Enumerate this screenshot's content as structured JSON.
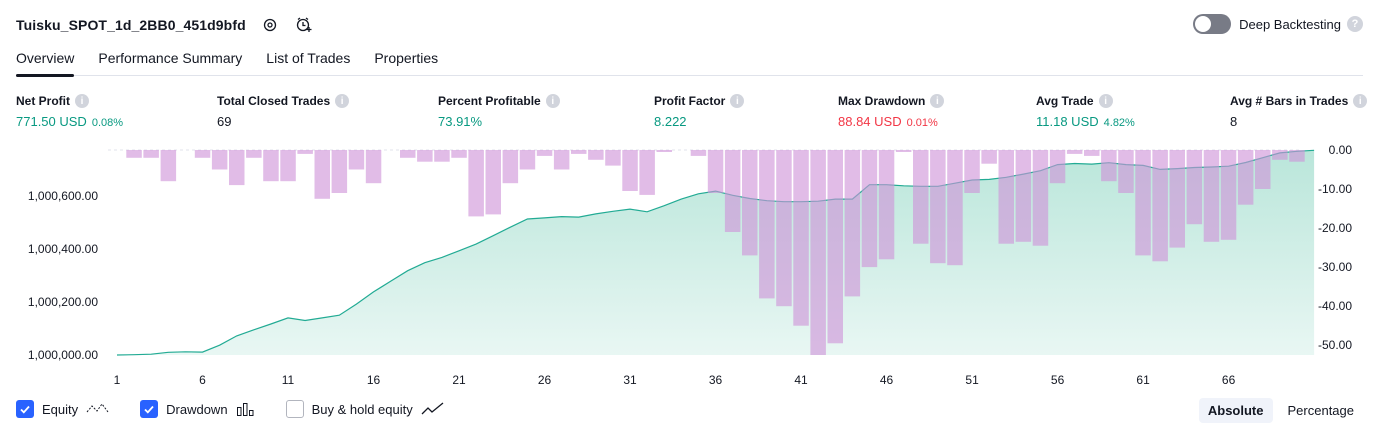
{
  "header": {
    "title": "Tuisku_SPOT_1d_2BB0_451d9bfd",
    "deep_backtesting_label": "Deep Backtesting",
    "help_glyph": "?"
  },
  "tabs": [
    {
      "label": "Overview",
      "active": true
    },
    {
      "label": "Performance Summary",
      "active": false
    },
    {
      "label": "List of Trades",
      "active": false
    },
    {
      "label": "Properties",
      "active": false
    }
  ],
  "metrics": [
    {
      "label": "Net Profit",
      "value": "771.50 USD",
      "sub": "0.08%",
      "tone": "pos"
    },
    {
      "label": "Total Closed Trades",
      "value": "69",
      "sub": "",
      "tone": "neu"
    },
    {
      "label": "Percent Profitable",
      "value": "73.91%",
      "sub": "",
      "tone": "pos"
    },
    {
      "label": "Profit Factor",
      "value": "8.222",
      "sub": "",
      "tone": "pos"
    },
    {
      "label": "Max Drawdown",
      "value": "88.84 USD",
      "sub": "0.01%",
      "tone": "neg"
    },
    {
      "label": "Avg Trade",
      "value": "11.18 USD",
      "sub": "4.82%",
      "tone": "pos"
    },
    {
      "label": "Avg # Bars in Trades",
      "value": "8",
      "sub": "",
      "tone": "neu"
    }
  ],
  "info_glyph": "i",
  "legend": {
    "equity": "Equity",
    "drawdown": "Drawdown",
    "buy_hold": "Buy & hold equity"
  },
  "mode": {
    "absolute": "Absolute",
    "percentage": "Percentage"
  },
  "colors": {
    "equity_line": "#22ab94",
    "equity_fill": "#b9e6dc",
    "drawdown_bar": "#ce93d8",
    "positive": "#089981",
    "negative": "#f23645",
    "accent": "#2962ff"
  },
  "chart_data": {
    "type": "area",
    "x_ticks": [
      "1",
      "6",
      "11",
      "16",
      "21",
      "26",
      "31",
      "36",
      "41",
      "46",
      "51",
      "56",
      "61",
      "66"
    ],
    "left_ticks": [
      {
        "label": "1,000,000.00",
        "value": 1000000
      },
      {
        "label": "1,000,200.00",
        "value": 1000200
      },
      {
        "label": "1,000,400.00",
        "value": 1000400
      },
      {
        "label": "1,000,600.00",
        "value": 1000600
      }
    ],
    "right_ticks": [
      {
        "label": "0.00",
        "value": 0
      },
      {
        "label": "-10.00",
        "value": -10
      },
      {
        "label": "-20.00",
        "value": -20
      },
      {
        "label": "-30.00",
        "value": -30
      },
      {
        "label": "-40.00",
        "value": -40
      },
      {
        "label": "-50.00",
        "value": -50
      }
    ],
    "x_range": [
      1,
      70
    ],
    "equity_range": [
      1000000,
      1000773
    ],
    "drawdown_range": [
      -52.5,
      0
    ],
    "equity": [
      1000000,
      1000001,
      1000003,
      1000010,
      1000012,
      1000011,
      1000037,
      1000072,
      1000095,
      1000117,
      1000140,
      1000130,
      1000140,
      1000150,
      1000192,
      1000238,
      1000278,
      1000318,
      1000348,
      1000368,
      1000393,
      1000418,
      1000450,
      1000482,
      1000513,
      1000517,
      1000522,
      1000520,
      1000532,
      1000542,
      1000550,
      1000540,
      1000563,
      1000588,
      1000608,
      1000618,
      1000602,
      1000590,
      1000582,
      1000578,
      1000578,
      1000580,
      1000588,
      1000588,
      1000642,
      1000642,
      1000638,
      1000636,
      1000636,
      1000648,
      1000660,
      1000662,
      1000670,
      1000682,
      1000695,
      1000718,
      1000722,
      1000720,
      1000725,
      1000718,
      1000715,
      1000700,
      1000703,
      1000707,
      1000709,
      1000712,
      1000726,
      1000744,
      1000762,
      1000768,
      1000772
    ],
    "drawdown": [
      0,
      -2,
      -2,
      -8,
      0,
      -2,
      -5,
      -9,
      -2,
      -8,
      -8,
      -1,
      -12.5,
      -11,
      -5,
      -8.5,
      0,
      -2,
      -3,
      -3,
      -2,
      -17,
      -16.5,
      -8.5,
      -5,
      -1.5,
      -5,
      -1,
      -2.5,
      -4,
      -10.5,
      -11.5,
      -0.5,
      0,
      -1.5,
      -11,
      -21,
      -27,
      -38,
      -40,
      -45,
      -52.5,
      -49.5,
      -37.5,
      -30,
      -28,
      -0.5,
      -24,
      -29,
      -29.5,
      -11,
      -3.5,
      -24,
      -23.5,
      -24.5,
      -8.5,
      -1,
      -1.5,
      -8,
      -11,
      -27,
      -28.5,
      -25,
      -19,
      -23.5,
      -23,
      -14,
      -10,
      -2.5,
      -3
    ]
  }
}
